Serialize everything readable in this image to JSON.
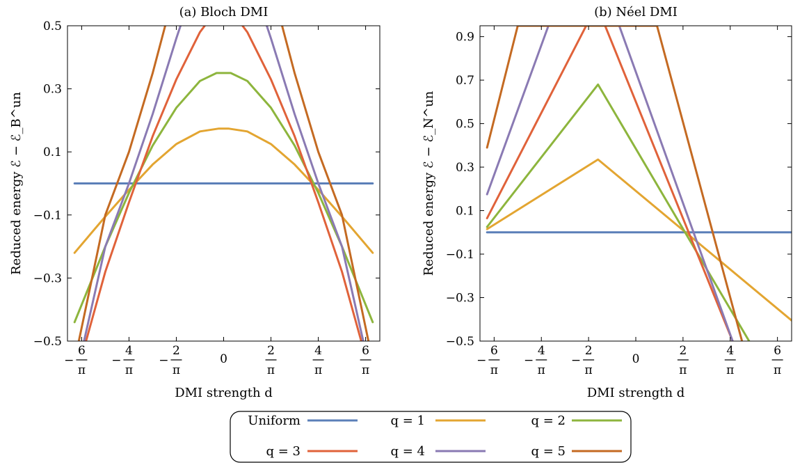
{
  "figure": {
    "legend": {
      "entries": [
        {
          "label": "Uniform",
          "color": "#5b7fb8"
        },
        {
          "label": "q = 1",
          "color": "#e3a531"
        },
        {
          "label": "q = 2",
          "color": "#8db53d"
        },
        {
          "label": "q = 3",
          "color": "#e0623a"
        },
        {
          "label": "q = 4",
          "color": "#8a7ab3"
        },
        {
          "label": "q = 5",
          "color": "#c46a22"
        }
      ]
    }
  },
  "chart_data": [
    {
      "type": "line",
      "title": "(a) Bloch DMI",
      "xlabel": "DMI strength d",
      "ylabel": "Reduced energy ℰ − ℰ_B^un",
      "xlim": [
        -6.6,
        6.6
      ],
      "ylim": [
        -0.5,
        0.5
      ],
      "x_ticks": [
        {
          "value": -6,
          "num": "6",
          "sign": "−",
          "den": "π"
        },
        {
          "value": -4,
          "num": "4",
          "sign": "−",
          "den": "π"
        },
        {
          "value": -2,
          "num": "2",
          "sign": "−",
          "den": "π"
        },
        {
          "value": 0,
          "num": "",
          "sign": "",
          "den": "",
          "plain": "0"
        },
        {
          "value": 2,
          "num": "2",
          "sign": "",
          "den": "π"
        },
        {
          "value": 4,
          "num": "4",
          "sign": "",
          "den": "π"
        },
        {
          "value": 6,
          "num": "6",
          "sign": "",
          "den": "π"
        }
      ],
      "y_ticks": [
        {
          "value": -0.5,
          "label": "−0.5"
        },
        {
          "value": -0.3,
          "label": "−0.3"
        },
        {
          "value": -0.1,
          "label": "−0.1"
        },
        {
          "value": 0.1,
          "label": "0.1"
        },
        {
          "value": 0.3,
          "label": "0.3"
        },
        {
          "value": 0.5,
          "label": "0.5"
        }
      ],
      "grid": false,
      "series": [
        {
          "name": "Uniform",
          "color": "#5b7fb8",
          "x": [
            -6.3,
            6.3
          ],
          "y": [
            0.0,
            0.0
          ]
        },
        {
          "name": "q = 1",
          "color": "#e3a531",
          "x": [
            -6.3,
            -5.0,
            -4.0,
            -3.0,
            -2.0,
            -1.0,
            -0.2,
            0.2,
            1.0,
            2.0,
            3.0,
            4.0,
            5.0,
            6.3
          ],
          "y": [
            -0.22,
            -0.105,
            -0.02,
            0.06,
            0.125,
            0.165,
            0.174,
            0.174,
            0.165,
            0.125,
            0.06,
            -0.02,
            -0.105,
            -0.22
          ]
        },
        {
          "name": "q = 2",
          "color": "#8db53d",
          "x": [
            -6.3,
            -5.0,
            -4.0,
            -3.0,
            -2.0,
            -1.0,
            -0.3,
            0.3,
            1.0,
            2.0,
            3.0,
            4.0,
            5.0,
            6.3
          ],
          "y": [
            -0.44,
            -0.2,
            -0.03,
            0.12,
            0.24,
            0.325,
            0.35,
            0.35,
            0.325,
            0.24,
            0.12,
            -0.03,
            -0.2,
            -0.44
          ]
        },
        {
          "name": "q = 3",
          "color": "#e0623a",
          "x": [
            -6.0,
            -5.0,
            -4.0,
            -3.0,
            -2.0,
            -1.0,
            -0.7,
            0.7,
            1.0,
            2.0,
            3.0,
            4.0,
            5.0,
            6.0
          ],
          "y": [
            -0.55,
            -0.28,
            -0.06,
            0.15,
            0.33,
            0.48,
            0.51,
            0.51,
            0.48,
            0.33,
            0.15,
            -0.06,
            -0.28,
            -0.55
          ]
        },
        {
          "name": "q = 4",
          "color": "#8a7ab3",
          "x": [
            -6.2,
            -5.0,
            -4.0,
            -3.0,
            -2.0,
            -1.6,
            1.6,
            2.0,
            3.0,
            4.0,
            5.0,
            6.2
          ],
          "y": [
            -0.6,
            -0.2,
            0.0,
            0.22,
            0.46,
            0.55,
            0.55,
            0.46,
            0.22,
            0.0,
            -0.2,
            -0.6
          ]
        },
        {
          "name": "q = 5",
          "color": "#c46a22",
          "x": [
            -6.4,
            -5.0,
            -4.0,
            -3.0,
            -2.4,
            2.4,
            3.0,
            4.0,
            5.0,
            6.4
          ],
          "y": [
            -0.6,
            -0.1,
            0.1,
            0.35,
            0.52,
            0.52,
            0.35,
            0.1,
            -0.1,
            -0.6
          ]
        }
      ]
    },
    {
      "type": "line",
      "title": "(b) Néel DMI",
      "xlabel": "DMI strength d",
      "ylabel": "Reduced energy ℰ − ℰ_N^un",
      "xlim": [
        -6.6,
        6.6
      ],
      "ylim": [
        -0.5,
        0.95
      ],
      "x_ticks": [
        {
          "value": -6,
          "num": "6",
          "sign": "−",
          "den": "π"
        },
        {
          "value": -4,
          "num": "4",
          "sign": "−",
          "den": "π"
        },
        {
          "value": -2,
          "num": "2",
          "sign": "−",
          "den": "π"
        },
        {
          "value": 0,
          "num": "",
          "sign": "",
          "den": "",
          "plain": "0"
        },
        {
          "value": 2,
          "num": "2",
          "sign": "",
          "den": "π"
        },
        {
          "value": 4,
          "num": "4",
          "sign": "",
          "den": "π"
        },
        {
          "value": 6,
          "num": "6",
          "sign": "",
          "den": "π"
        }
      ],
      "y_ticks": [
        {
          "value": -0.5,
          "label": "−0.5"
        },
        {
          "value": -0.3,
          "label": "−0.3"
        },
        {
          "value": -0.1,
          "label": "−0.1"
        },
        {
          "value": 0.1,
          "label": "0.1"
        },
        {
          "value": 0.3,
          "label": "0.3"
        },
        {
          "value": 0.5,
          "label": "0.5"
        },
        {
          "value": 0.7,
          "label": "0.7"
        },
        {
          "value": 0.9,
          "label": "0.9"
        }
      ],
      "grid": false,
      "series": [
        {
          "name": "Uniform",
          "color": "#5b7fb8",
          "x": [
            -6.3,
            6.6
          ],
          "y": [
            0.0,
            0.0
          ]
        },
        {
          "name": "q = 1",
          "color": "#e3a531",
          "x": [
            -6.3,
            -1.6,
            6.6
          ],
          "y": [
            0.015,
            0.335,
            -0.405
          ]
        },
        {
          "name": "q = 2",
          "color": "#8db53d",
          "x": [
            -6.3,
            -1.6,
            4.8
          ],
          "y": [
            0.025,
            0.68,
            -0.5
          ]
        },
        {
          "name": "q = 3",
          "color": "#e0623a",
          "x": [
            -6.3,
            -2.1,
            -1.3,
            4.1
          ],
          "y": [
            0.065,
            0.95,
            0.95,
            -0.5
          ]
        },
        {
          "name": "q = 4",
          "color": "#8a7ab3",
          "x": [
            -6.3,
            -3.7,
            -0.7,
            4.1
          ],
          "y": [
            0.175,
            0.95,
            0.95,
            -0.5
          ]
        },
        {
          "name": "q = 5",
          "color": "#c46a22",
          "x": [
            -6.3,
            -5.0,
            0.9,
            4.5
          ],
          "y": [
            0.39,
            0.95,
            0.95,
            -0.5
          ]
        }
      ]
    }
  ]
}
